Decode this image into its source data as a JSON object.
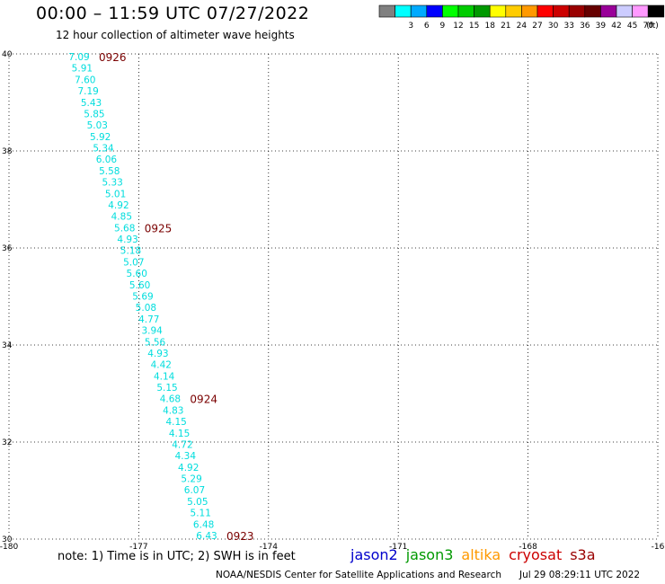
{
  "title": "00:00 – 11:59 UTC 07/27/2022",
  "subtitle": "12 hour collection of altimeter wave heights",
  "color_legend": {
    "unit_label": "(ft)",
    "bins": [
      {
        "label": "",
        "color": "#808080"
      },
      {
        "label": "3",
        "color": "#00ffff"
      },
      {
        "label": "6",
        "color": "#00aaff"
      },
      {
        "label": "9",
        "color": "#0000ff"
      },
      {
        "label": "12",
        "color": "#00ff00"
      },
      {
        "label": "15",
        "color": "#00cc00"
      },
      {
        "label": "18",
        "color": "#009900"
      },
      {
        "label": "21",
        "color": "#ffff00"
      },
      {
        "label": "24",
        "color": "#ffcc00"
      },
      {
        "label": "27",
        "color": "#ff9900"
      },
      {
        "label": "30",
        "color": "#ff0000"
      },
      {
        "label": "33",
        "color": "#cc0000"
      },
      {
        "label": "36",
        "color": "#990000"
      },
      {
        "label": "39",
        "color": "#660000"
      },
      {
        "label": "42",
        "color": "#990099"
      },
      {
        "label": "45",
        "color": "#ccccff"
      },
      {
        "label": "70",
        "color": "#ff99ff"
      },
      {
        "label": "",
        "color": "#000000"
      }
    ]
  },
  "map": {
    "lon_range": [
      -180,
      -165
    ],
    "lat_range": [
      30,
      40
    ],
    "lon_ticks": [
      "-180",
      "-177",
      "-174",
      "-171",
      "-168",
      "-16"
    ],
    "lat_ticks": [
      "40",
      "38",
      "36",
      "34",
      "32",
      "30"
    ],
    "grid": true
  },
  "track": {
    "satellite": "cryosat",
    "value_color": "#00dddd",
    "time_color": "#7a0000",
    "values": [
      "7.09",
      "5.91",
      "7.60",
      "7.19",
      "5.43",
      "5.85",
      "5.03",
      "5.92",
      "5.34",
      "6.06",
      "5.58",
      "5.33",
      "5.01",
      "4.92",
      "4.85",
      "5.68",
      "4.93",
      "5.18",
      "5.07",
      "5.60",
      "5.60",
      "5.69",
      "5.08",
      "4.77",
      "3.94",
      "5.56",
      "4.93",
      "4.42",
      "4.14",
      "5.15",
      "4.68",
      "4.83",
      "4.15",
      "4.15",
      "4.72",
      "4.34",
      "4.92",
      "5.29",
      "6.07",
      "5.05",
      "5.11",
      "6.48",
      "6.43"
    ],
    "time_labels": [
      {
        "text": "0926",
        "index": 0
      },
      {
        "text": "0925",
        "index": 15
      },
      {
        "text": "0924",
        "index": 30
      },
      {
        "text": "0923",
        "index": 42
      }
    ]
  },
  "note": "note:  1) Time is in UTC; 2) SWH is in feet",
  "satellites": [
    {
      "name": "jason2",
      "color": "#0000cc"
    },
    {
      "name": "jason3",
      "color": "#009900"
    },
    {
      "name": "altika",
      "color": "#ff9900"
    },
    {
      "name": "cryosat",
      "color": "#cc0000"
    },
    {
      "name": "s3a",
      "color": "#990000"
    }
  ],
  "credit": "NOAA/NESDIS Center for Satellite Applications and Research",
  "timestamp": "Jul 29 08:29:11 UTC 2022"
}
